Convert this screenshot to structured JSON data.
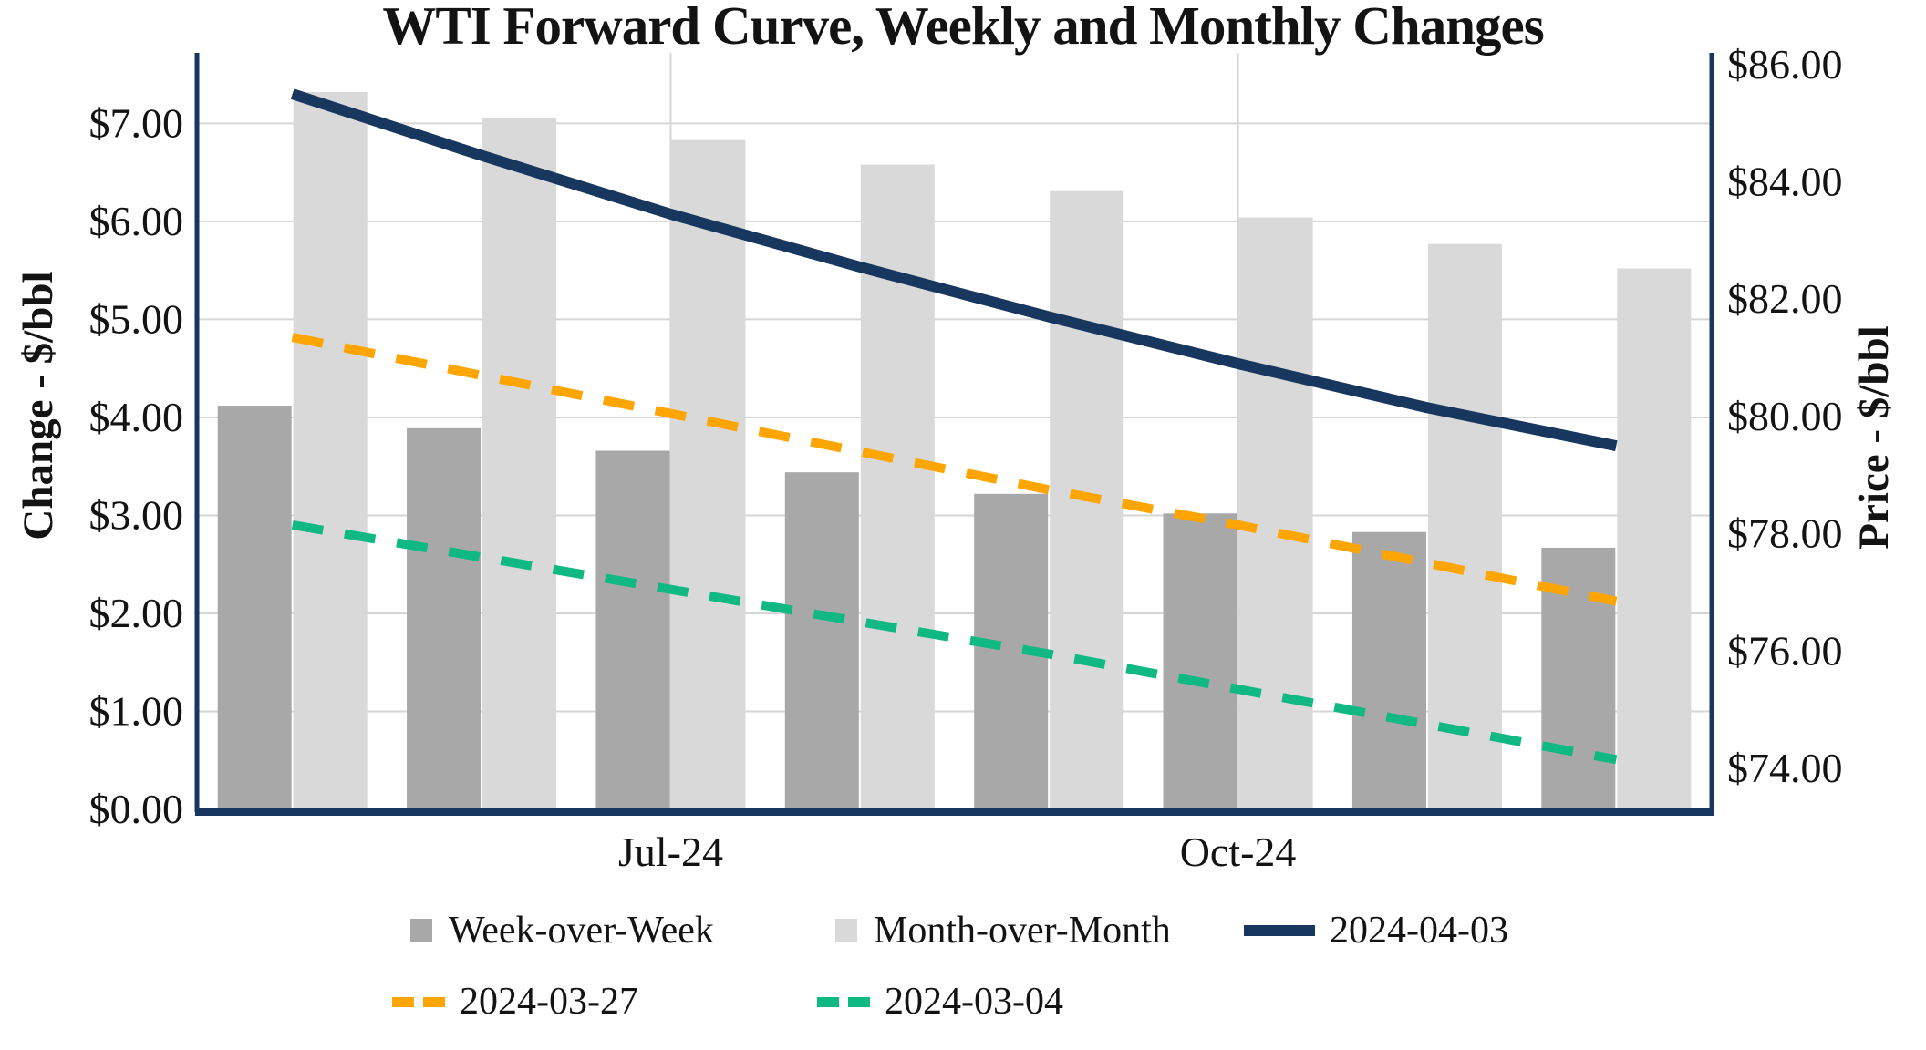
{
  "chart_data": {
    "type": "combo-bar-line",
    "title": "WTI Forward Curve, Weekly and Monthly Changes",
    "n_categories": 8,
    "x_axis": {
      "visible_tick_labels": [
        {
          "index": 2,
          "label": "Jul-24"
        },
        {
          "index": 5,
          "label": "Oct-24"
        }
      ],
      "vertical_gridline_indices": [
        2,
        5
      ]
    },
    "left_axis": {
      "title": "Change - $/bbl",
      "min": 0,
      "max": 7.72,
      "ticks": [
        {
          "value": 0,
          "label": "$0.00"
        },
        {
          "value": 1,
          "label": "$1.00"
        },
        {
          "value": 2,
          "label": "$2.00"
        },
        {
          "value": 3,
          "label": "$3.00"
        },
        {
          "value": 4,
          "label": "$4.00"
        },
        {
          "value": 5,
          "label": "$5.00"
        },
        {
          "value": 6,
          "label": "$6.00"
        },
        {
          "value": 7,
          "label": "$7.00"
        }
      ]
    },
    "right_axis": {
      "title": "Price - $/bbl",
      "min": 73.3,
      "max": 86.2,
      "ticks": [
        {
          "value": 74,
          "label": "$74.00"
        },
        {
          "value": 76,
          "label": "$76.00"
        },
        {
          "value": 78,
          "label": "$78.00"
        },
        {
          "value": 80,
          "label": "$80.00"
        },
        {
          "value": 82,
          "label": "$82.00"
        },
        {
          "value": 84,
          "label": "$84.00"
        },
        {
          "value": 86,
          "label": "$86.00"
        }
      ]
    },
    "bar_series": [
      {
        "name": "Week-over-Week",
        "axis": "left",
        "color": "#A8A8A8",
        "values": [
          4.12,
          3.89,
          3.66,
          3.44,
          3.22,
          3.02,
          2.83,
          2.67
        ]
      },
      {
        "name": "Month-over-Month",
        "axis": "left",
        "color": "#D9D9D9",
        "values": [
          7.32,
          7.06,
          6.83,
          6.58,
          6.31,
          6.04,
          5.77,
          5.52
        ]
      }
    ],
    "line_series": [
      {
        "name": "2024-04-03",
        "axis": "right",
        "color": "#17375E",
        "style": "solid",
        "values": [
          85.5,
          84.45,
          83.45,
          82.55,
          81.7,
          80.9,
          80.15,
          79.5
        ]
      },
      {
        "name": "2024-03-27",
        "axis": "right",
        "color": "#FFA500",
        "style": "dashed",
        "values": [
          81.35,
          80.7,
          80.05,
          79.4,
          78.75,
          78.15,
          77.5,
          76.85
        ]
      },
      {
        "name": "2024-03-04",
        "axis": "right",
        "color": "#10B981",
        "style": "dashed",
        "values": [
          78.15,
          77.6,
          77.05,
          76.5,
          75.95,
          75.35,
          74.75,
          74.15
        ]
      }
    ],
    "gridline_color": "#D6D6D6",
    "frame_color": "#17375E"
  },
  "legend": {
    "items": [
      {
        "marker": "square",
        "color": "#A8A8A8",
        "label": "Week-over-Week"
      },
      {
        "marker": "square",
        "color": "#D9D9D9",
        "label": "Month-over-Month"
      },
      {
        "marker": "line-solid",
        "color": "#17375E",
        "label": "2024-04-03"
      },
      {
        "marker": "line-dashed",
        "color": "#FFA500",
        "label": "2024-03-27"
      },
      {
        "marker": "line-dashed",
        "color": "#10B981",
        "label": "2024-03-04"
      }
    ]
  }
}
